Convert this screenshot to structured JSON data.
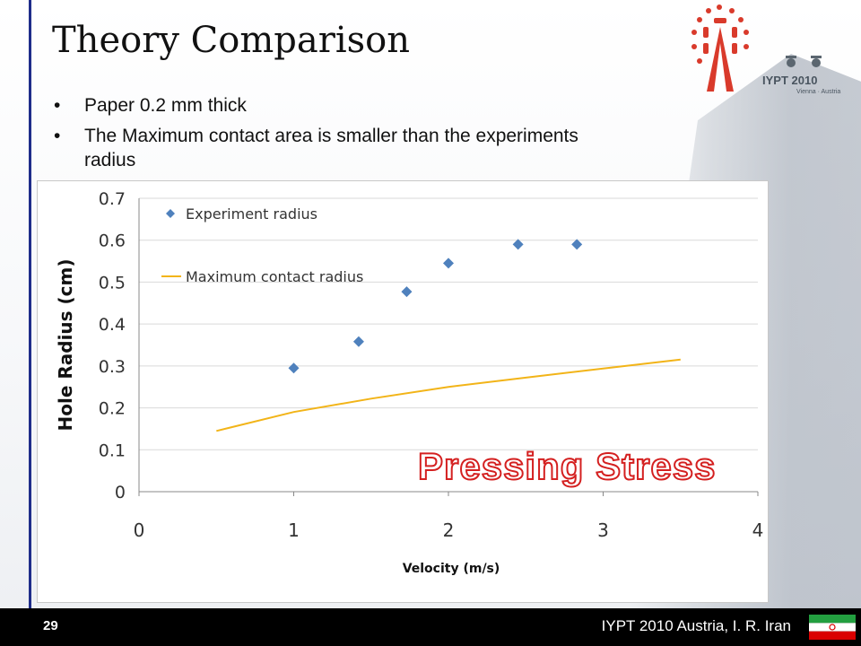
{
  "slide": {
    "title": "Theory Comparison",
    "bullets": [
      "Paper 0.2 mm thick",
      "The Maximum contact area is smaller than the experiments radius"
    ],
    "stamp": "Pressing Stress"
  },
  "logo": {
    "text": "IYPT 2010",
    "subtext": "Vienna · Austria",
    "icon": "iypt-2010-logo"
  },
  "footer": {
    "page_number": "29",
    "text": "IYPT 2010 Austria, I. R. Iran",
    "flag_icon": "iran-flag-icon"
  },
  "chart_data": {
    "type": "scatter",
    "title": "",
    "xlabel": "Velocity (m/s)",
    "ylabel": "Hole Radius (cm)",
    "xlim": [
      0,
      4
    ],
    "ylim": [
      0,
      0.7
    ],
    "x_ticks": [
      "0",
      "1",
      "2",
      "3",
      "4"
    ],
    "y_ticks": [
      "0",
      "0.1",
      "0.2",
      "0.3",
      "0.4",
      "0.5",
      "0.6",
      "0.7"
    ],
    "grid": "horizontal",
    "legend_position": "top-left",
    "series": [
      {
        "name": "Experiment radius",
        "kind": "scatter",
        "marker": "diamond",
        "color": "#4f81bd",
        "x": [
          1.0,
          1.42,
          1.73,
          2.0,
          2.45,
          2.83
        ],
        "y": [
          0.295,
          0.358,
          0.477,
          0.545,
          0.59,
          0.59
        ]
      },
      {
        "name": "Maximum contact radius",
        "kind": "line",
        "color": "#f2b418",
        "x": [
          0.5,
          1.0,
          1.5,
          2.0,
          2.5,
          3.0,
          3.5
        ],
        "y": [
          0.145,
          0.19,
          0.222,
          0.25,
          0.272,
          0.294,
          0.315
        ]
      }
    ]
  }
}
